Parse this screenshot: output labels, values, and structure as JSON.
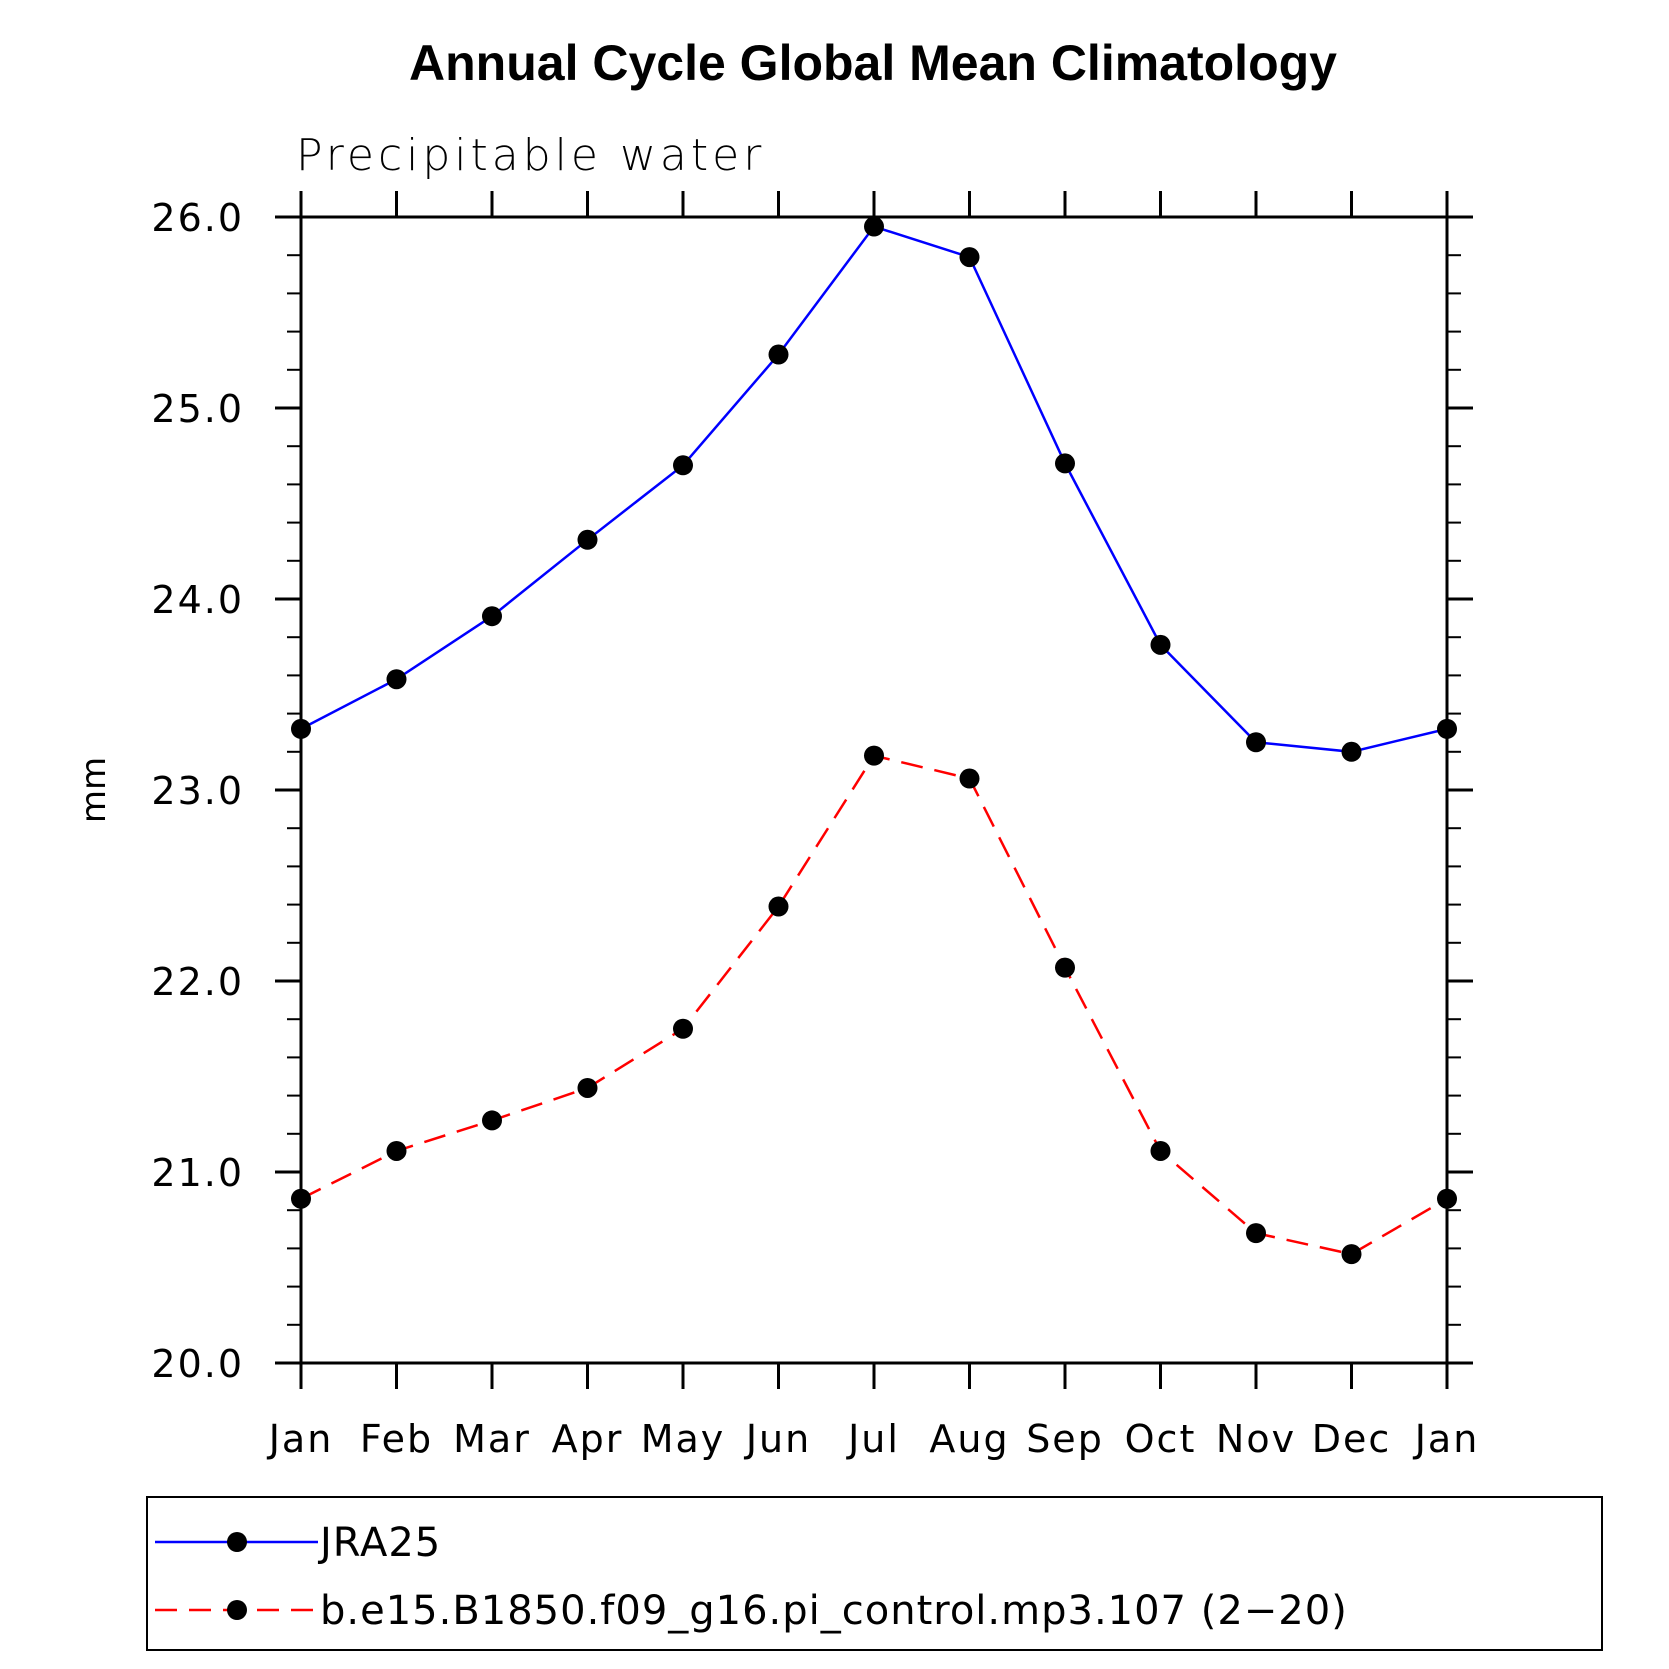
{
  "chart_data": {
    "type": "line",
    "title": "Annual Cycle Global Mean Climatology",
    "subtitle": "Precipitable water",
    "ylabel": "mm",
    "xlabel": "",
    "categories": [
      "Jan",
      "Feb",
      "Mar",
      "Apr",
      "May",
      "Jun",
      "Jul",
      "Aug",
      "Sep",
      "Oct",
      "Nov",
      "Dec",
      "Jan"
    ],
    "ylim": [
      20.0,
      26.0
    ],
    "yticks": [
      "20.0",
      "21.0",
      "22.0",
      "23.0",
      "24.0",
      "25.0",
      "26.0"
    ],
    "grid": false,
    "legend_position": "bottom",
    "series": [
      {
        "name": "JRA25",
        "color": "#0000ff",
        "line_style": "solid",
        "marker": "filled-circle",
        "values": [
          23.32,
          23.58,
          23.91,
          24.31,
          24.7,
          25.28,
          25.95,
          25.79,
          24.71,
          23.76,
          23.25,
          23.2,
          23.32
        ]
      },
      {
        "name": "b.e15.B1850.f09_g16.pi_control.mp3.107 (2−20)",
        "color": "#ff0000",
        "line_style": "dashed",
        "marker": "filled-circle",
        "values": [
          20.86,
          21.11,
          21.27,
          21.44,
          21.75,
          22.39,
          23.18,
          23.06,
          22.07,
          21.11,
          20.68,
          20.57,
          20.86
        ]
      }
    ]
  }
}
